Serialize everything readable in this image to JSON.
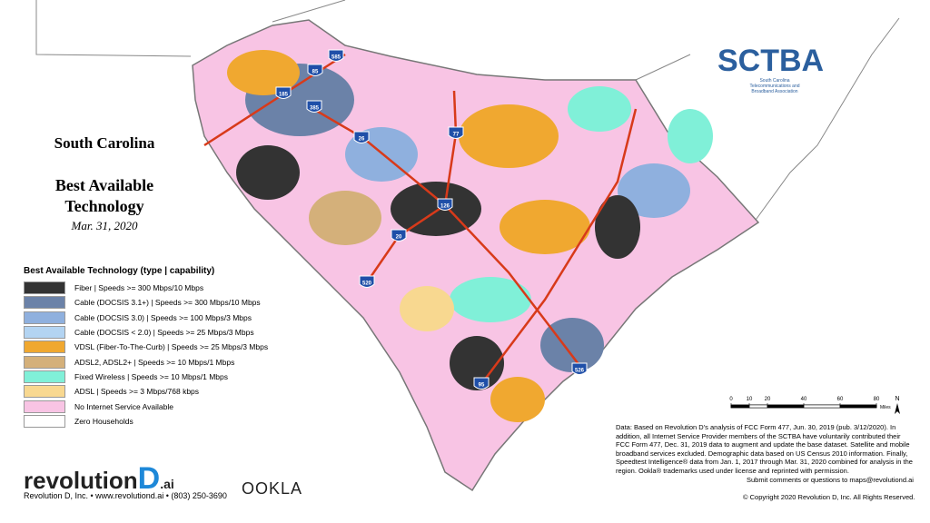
{
  "title": {
    "line1": "South Carolina",
    "line2": "Best Available",
    "line3": "Technology",
    "date": "Mar. 31, 2020"
  },
  "legend": {
    "title": "Best Available Technology (type | capability)",
    "items": [
      {
        "label": "Fiber | Speeds >= 300 Mbps/10 Mbps",
        "color": "#333333"
      },
      {
        "label": "Cable (DOCSIS 3.1+) | Speeds >= 300 Mbps/10 Mbps",
        "color": "#6b82a8"
      },
      {
        "label": "Cable (DOCSIS 3.0) | Speeds >= 100 Mbps/3 Mbps",
        "color": "#8fb0de"
      },
      {
        "label": "Cable (DOCSIS < 2.0) | Speeds >= 25 Mbps/3 Mbps",
        "color": "#b3d4f2"
      },
      {
        "label": "VDSL (Fiber-To-The-Curb) | Speeds >= 25 Mbps/3 Mbps",
        "color": "#f0a830"
      },
      {
        "label": "ADSL2, ADSL2+ | Speeds >= 10 Mbps/1 Mbps",
        "color": "#d4b07a"
      },
      {
        "label": "Fixed Wireless | Speeds >= 10 Mbps/1 Mbps",
        "color": "#80f0d8"
      },
      {
        "label": "ADSL | Speeds >= 3 Mbps/768 kbps",
        "color": "#f8d890"
      },
      {
        "label": "No Internet Service Available",
        "color": "#f8c4e4"
      },
      {
        "label": "Zero Households",
        "color": "#ffffff"
      }
    ]
  },
  "interstates": [
    "85",
    "585",
    "185",
    "385",
    "26",
    "77",
    "126",
    "20",
    "520",
    "95",
    "526"
  ],
  "scale": {
    "ticks": [
      0,
      10,
      20,
      40,
      60,
      80
    ],
    "unit": "Miles",
    "north": "N"
  },
  "sctba": {
    "name": "SCTBA",
    "full": "South Carolina Telecommunications and Broadband Association"
  },
  "note": "Data: Based on Revolution D's analysis of FCC Form 477, Jun. 30, 2019 (pub. 3/12/2020). In addition, all Internet Service Provider members of the SCTBA have voluntarily contributed their FCC Form 477, Dec. 31, 2019 data to augment and update the base dataset. Satellite and mobile broadband services excluded. Demographic data based on US Census 2010 information. Finally, Speedtest Intelligence® data from Jan. 1, 2017 through Mar. 31, 2020 combined for analysis in the region. Ookla® trademarks used under license and reprinted with permission.",
  "submit": "Submit comments or questions to maps@revolutiond.ai",
  "copyright": "© Copyright 2020 Revolution D, Inc. All Rights Reserved.",
  "brand": {
    "name": "revolution",
    "d": "D",
    "ai": ".ai",
    "contact": "Revolution D, Inc. • www.revolutiond.ai • (803) 250-3690",
    "ookla": "OOKLA"
  }
}
